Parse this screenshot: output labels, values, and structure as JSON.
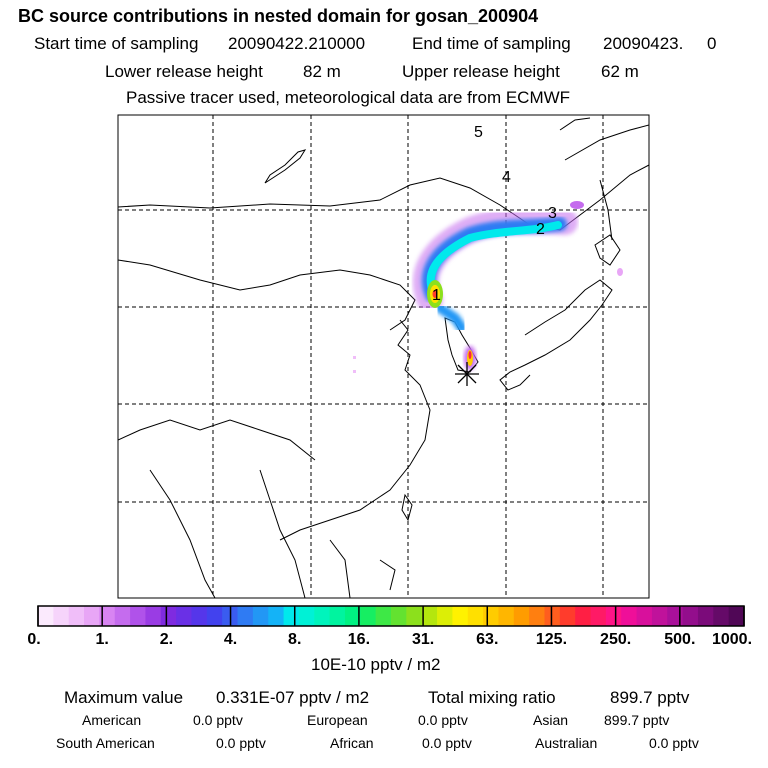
{
  "header": {
    "title": "BC  source contributions in nested domain for gosan_200904",
    "start_label": "Start time of sampling",
    "start_value": "20090422.210000",
    "end_label": "End time of sampling",
    "end_value": "20090423.     0",
    "lower_label": "Lower release height",
    "lower_value": "82 m",
    "upper_label": "Upper release height",
    "upper_value": "62 m",
    "note": "Passive tracer used, meteorological data are from ECMWF"
  },
  "map": {
    "trajectory_labels": [
      "1",
      "2",
      "3",
      "4",
      "5"
    ],
    "receptor_marker": "star"
  },
  "colorbar": {
    "tick_labels": [
      "0.",
      "1.",
      "2.",
      "4.",
      "8.",
      "16.",
      "31.",
      "63.",
      "125.",
      "250.",
      "500.",
      "1000."
    ],
    "colors": [
      "#fbeafd",
      "#f6d4fb",
      "#f0bef9",
      "#e8a6f6",
      "#d884f2",
      "#c56cee",
      "#b052ea",
      "#9a3ce4",
      "#7f2be0",
      "#6a30e6",
      "#5536ea",
      "#4242ee",
      "#3a5cf0",
      "#2f7bf3",
      "#2297f5",
      "#14b3f7",
      "#00e9ec",
      "#00f1d6",
      "#00f4bc",
      "#00f49f",
      "#00f282",
      "#16ee62",
      "#3ee846",
      "#63e230",
      "#8ce01c",
      "#b4e60e",
      "#dcee06",
      "#fff200",
      "#ffe000",
      "#ffcc00",
      "#ffb600",
      "#ff9c00",
      "#ff7f10",
      "#ff5e1e",
      "#ff3c2c",
      "#ff1f44",
      "#ff1a66",
      "#ff1487",
      "#ef0f99",
      "#d8109c",
      "#c0129b",
      "#a9109a",
      "#930e8c",
      "#7b0b7a",
      "#650a68",
      "#500756"
    ],
    "units": "10E-10 pptv / m2"
  },
  "summary": {
    "max_label": "Maximum value",
    "max_value": "0.331E-07 pptv / m2",
    "total_label": "Total mixing ratio",
    "total_value": "899.7 pptv",
    "american_label": "American",
    "american_value": "0.0 pptv",
    "european_label": "European",
    "european_value": "0.0 pptv",
    "asian_label": "Asian",
    "asian_value": "899.7 pptv",
    "south_american_label": "South American",
    "south_american_value": "0.0 pptv",
    "african_label": "African",
    "african_value": "0.0 pptv",
    "australian_label": "Australian",
    "australian_value": "0.0 pptv"
  }
}
